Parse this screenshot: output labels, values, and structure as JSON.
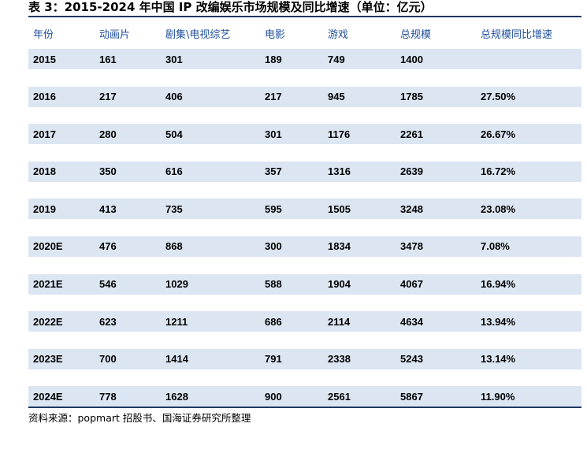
{
  "caption": "表 3：2015-2024 年中国 IP 改编娱乐市场规模及同比增速（单位：亿元）",
  "headers": [
    "年份",
    "动画片",
    "剧集\\电视综艺",
    "电影",
    "游戏",
    "总规模",
    "总规模同比增速"
  ],
  "rows": [
    [
      "2015",
      "161",
      "301",
      "189",
      "749",
      "1400",
      ""
    ],
    [
      "2016",
      "217",
      "406",
      "217",
      "945",
      "1785",
      "27.50%"
    ],
    [
      "2017",
      "280",
      "504",
      "301",
      "1176",
      "2261",
      "26.67%"
    ],
    [
      "2018",
      "350",
      "616",
      "357",
      "1316",
      "2639",
      "16.72%"
    ],
    [
      "2019",
      "413",
      "735",
      "595",
      "1505",
      "3248",
      "23.08%"
    ],
    [
      "2020E",
      "476",
      "868",
      "300",
      "1834",
      "3478",
      "7.08%"
    ],
    [
      "2021E",
      "546",
      "1029",
      "588",
      "1904",
      "4067",
      "16.94%"
    ],
    [
      "2022E",
      "623",
      "1211",
      "686",
      "2114",
      "4634",
      "13.94%"
    ],
    [
      "2023E",
      "700",
      "1414",
      "791",
      "2338",
      "5243",
      "13.14%"
    ],
    [
      "2024E",
      "778",
      "1628",
      "900",
      "2561",
      "5867",
      "11.90%"
    ]
  ],
  "source": "资料来源：popmart 招股书、国海证券研究所整理",
  "colors": {
    "header_text": "#1f4e9c",
    "row_band": "#dce6f2",
    "rule": "#1f3864"
  }
}
